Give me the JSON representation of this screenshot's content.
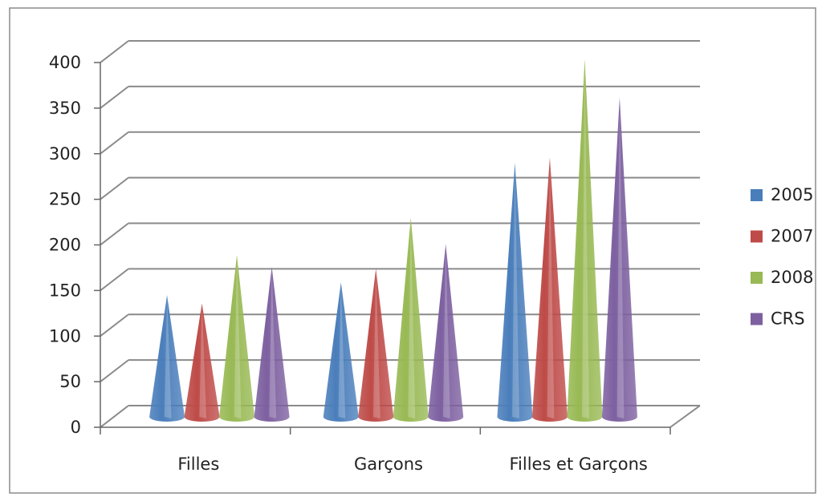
{
  "chart_data": {
    "type": "bar",
    "subtype": "3d-cone",
    "title": "",
    "xlabel": "",
    "ylabel": "",
    "categories": [
      "Filles",
      "Garçons",
      "Filles et Garçons"
    ],
    "series": [
      {
        "name": "2005",
        "color": "#4A7EBB",
        "values": [
          133,
          147,
          278
        ]
      },
      {
        "name": "2007",
        "color": "#BE4B48",
        "values": [
          124,
          162,
          284
        ]
      },
      {
        "name": "2008",
        "color": "#98B954",
        "values": [
          177,
          218,
          392
        ]
      },
      {
        "name": "CRS",
        "color": "#7D60A0",
        "values": [
          164,
          189,
          350
        ]
      }
    ],
    "ylim": [
      0,
      400
    ],
    "yticks": [
      "0",
      "50",
      "100",
      "150",
      "200",
      "250",
      "300",
      "350",
      "400"
    ],
    "grid": true,
    "legend_position": "right"
  }
}
